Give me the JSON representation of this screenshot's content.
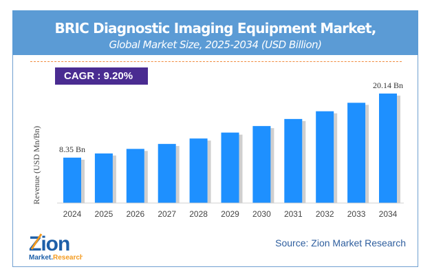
{
  "header": {
    "title": "BRIC Diagnostic Imaging Equipment Market,",
    "subtitle": "Global Market Size, 2025-2034 (USD Billion)"
  },
  "cagr": "CAGR :  9.20%",
  "source": "Source: Zion Market Research",
  "logo": {
    "text_top": "Zion",
    "text_bottom": "Market.Research"
  },
  "colors": {
    "bar": "#1e90ff",
    "header": "#5b9bd5",
    "cagr": "#4a2c91"
  },
  "chart_data": {
    "type": "bar",
    "title": "BRIC Diagnostic Imaging Equipment Market",
    "ylabel": "Revenue (USD Mn/Bn)",
    "xlabel": "",
    "categories": [
      "2024",
      "2025",
      "2026",
      "2027",
      "2028",
      "2029",
      "2030",
      "2031",
      "2032",
      "2033",
      "2034"
    ],
    "values": [
      8.35,
      9.12,
      9.96,
      10.87,
      11.87,
      12.96,
      14.16,
      15.46,
      16.88,
      18.44,
      20.14
    ],
    "data_labels": {
      "0": "8.35 Bn",
      "10": "20.14 Bn"
    },
    "ylim": [
      0,
      22
    ],
    "grid": false
  }
}
